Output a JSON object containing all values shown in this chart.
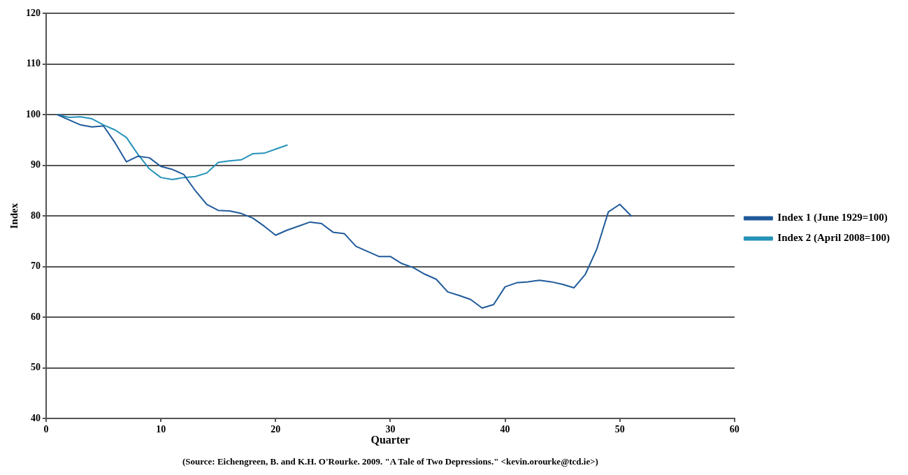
{
  "chart_data": {
    "type": "line",
    "xlabel": "Quarter",
    "ylabel": "Index",
    "annotations": [
      "(Source: Eichengreen, B. and K.H. O'Rourke. 2009. \"A Tale of Two Depressions.\" <kevin.orourke@tcd.ie>)"
    ],
    "series": [
      {
        "name": "Index 1 (June 1929=100)",
        "color": "#1f5a9a",
        "x": [
          1,
          2,
          3,
          4,
          5,
          6,
          7,
          8,
          9,
          10,
          11,
          12,
          13,
          14,
          15,
          16,
          17,
          18,
          19,
          20,
          21,
          22,
          23,
          24,
          25,
          26,
          27,
          28,
          29,
          30,
          31,
          32,
          33,
          34,
          35,
          36,
          37,
          38,
          39,
          40,
          41,
          42,
          43,
          44,
          45,
          46,
          47,
          48,
          49,
          50,
          51
        ],
        "values": [
          100,
          99,
          98,
          97.6,
          97.8,
          94.5,
          90.7,
          91.8,
          91.5,
          89.8,
          89.2,
          88.2,
          85,
          82.3,
          81.1,
          81,
          80.5,
          79.6,
          78,
          76.2,
          77.2,
          78,
          78.8,
          78.5,
          76.8,
          76.5,
          74,
          73,
          72,
          72,
          70.6,
          69.8,
          68.5,
          67.5,
          65,
          64.3,
          63.5,
          61.8,
          62.5,
          66,
          66.8,
          67,
          67.3,
          67,
          66.5,
          65.8,
          68.5,
          73.5,
          80.8,
          82.3,
          80
        ]
      },
      {
        "name": "Index 2 (April 2008=100)",
        "color": "#2592b8",
        "x": [
          1,
          2,
          3,
          4,
          5,
          6,
          7,
          8,
          9,
          10,
          11,
          12,
          13,
          14,
          15,
          16,
          17,
          18,
          19,
          20,
          21
        ],
        "values": [
          100,
          99.5,
          99.6,
          99.2,
          98,
          97,
          95.5,
          92.2,
          89.3,
          87.6,
          87.2,
          87.6,
          87.8,
          88.5,
          90.6,
          90.9,
          91.1,
          92.3,
          92.4,
          93.2,
          94
        ]
      }
    ],
    "xlim": [
      0,
      60
    ],
    "xticks": [
      0,
      10,
      20,
      30,
      40,
      50,
      60
    ],
    "ylim": [
      40,
      120
    ],
    "yticks": [
      40,
      50,
      60,
      70,
      80,
      90,
      100,
      110,
      120
    ],
    "grid": "y",
    "legend": "right",
    "marker": "none",
    "line_style": "solid"
  }
}
